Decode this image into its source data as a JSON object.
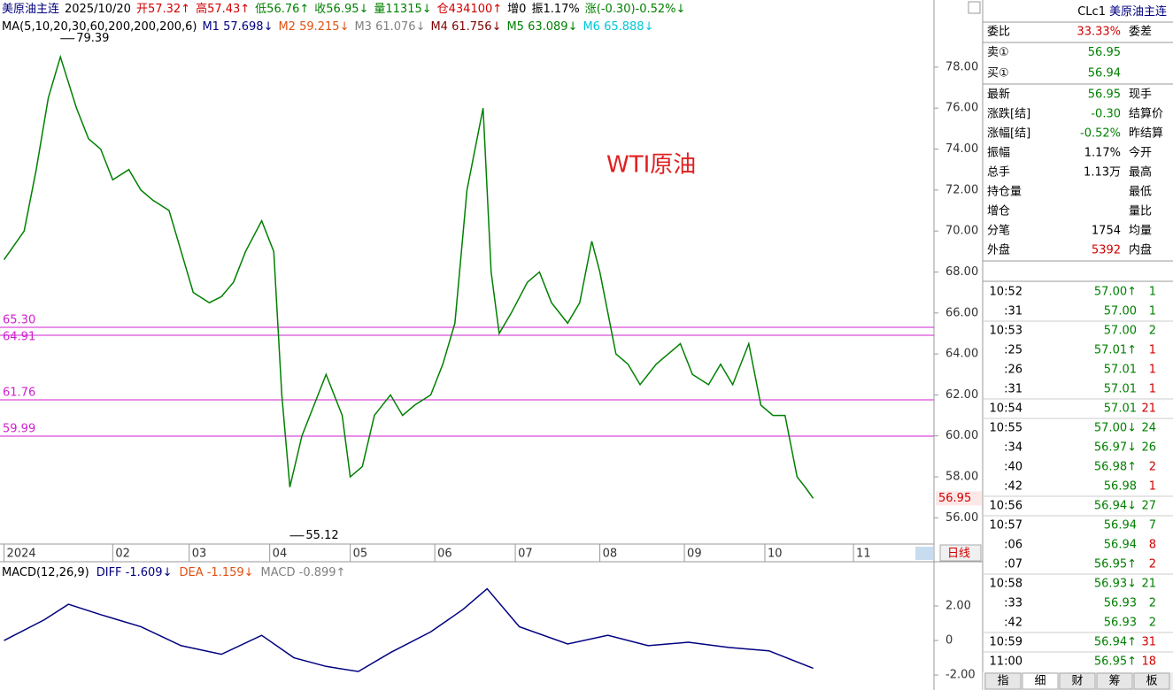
{
  "header": {
    "items": [
      {
        "text": "美原油主连",
        "color": "#000080"
      },
      {
        "text": "2025/10/20",
        "color": "#000000"
      },
      {
        "text": "开57.32↑",
        "color": "#d00000"
      },
      {
        "text": "高57.43↑",
        "color": "#d00000"
      },
      {
        "text": "低56.76↑",
        "color": "#008000"
      },
      {
        "text": "收56.95↓",
        "color": "#008000"
      },
      {
        "text": "量11315↓",
        "color": "#008000"
      },
      {
        "text": "仓434100↑",
        "color": "#d00000"
      },
      {
        "text": "增0",
        "color": "#000000"
      },
      {
        "text": "振1.17%",
        "color": "#000000"
      },
      {
        "text": "涨(-0.30)-0.52%↓",
        "color": "#008000"
      }
    ],
    "ma": [
      {
        "text": "MA(5,10,20,30,60,200,200,200,6)",
        "color": "#000000"
      },
      {
        "text": "M1 57.698↓",
        "color": "#000080"
      },
      {
        "text": "M2 59.215↓",
        "color": "#e05010"
      },
      {
        "text": "M3 61.076↓",
        "color": "#808080"
      },
      {
        "text": "M4 61.756↓",
        "color": "#800000"
      },
      {
        "text": "M5 63.089↓",
        "color": "#008000"
      },
      {
        "text": "M6 65.888↓",
        "color": "#00c8d8"
      }
    ]
  },
  "chart_data": [
    {
      "type": "line",
      "annotation": "WTI原油",
      "ylim": [
        54.85,
        79.55
      ],
      "xlim": [
        -1,
        231
      ],
      "yticks": [
        {
          "value": 56,
          "label": "56.00"
        },
        {
          "value": 58,
          "label": "58.00"
        },
        {
          "value": 60,
          "label": "60.00"
        },
        {
          "value": 62,
          "label": "62.00"
        },
        {
          "value": 64,
          "label": "64.00"
        },
        {
          "value": 66,
          "label": "66.00"
        },
        {
          "value": 68,
          "label": "68.00"
        },
        {
          "value": 70,
          "label": "70.00"
        },
        {
          "value": 72,
          "label": "72.00"
        },
        {
          "value": 74,
          "label": "74.00"
        },
        {
          "value": 76,
          "label": "76.00"
        },
        {
          "value": 78,
          "label": "78.00"
        }
      ],
      "xticks": [
        {
          "value": 0,
          "label": "2024"
        },
        {
          "value": 27,
          "label": "02"
        },
        {
          "value": 46,
          "label": "03"
        },
        {
          "value": 66,
          "label": "04"
        },
        {
          "value": 86,
          "label": "05"
        },
        {
          "value": 107,
          "label": "06"
        },
        {
          "value": 127,
          "label": "07"
        },
        {
          "value": 148,
          "label": "08"
        },
        {
          "value": 169,
          "label": "09"
        },
        {
          "value": 189,
          "label": "10"
        },
        {
          "value": 211,
          "label": "11"
        }
      ],
      "period_label": "日线",
      "levels": [
        {
          "value": 65.3,
          "label": "65.30"
        },
        {
          "value": 64.91,
          "label": "64.91"
        },
        {
          "value": 61.76,
          "label": "61.76"
        },
        {
          "value": 59.99,
          "label": "59.99"
        }
      ],
      "extremes": [
        {
          "x": 14,
          "value": 79.39,
          "label": "79.39"
        },
        {
          "x": 71,
          "value": 55.12,
          "label": "55.12"
        }
      ],
      "last_price": {
        "value": 56.95,
        "label": "56.95"
      },
      "series": [
        {
          "color": "#008000",
          "x": [
            0,
            5,
            8,
            11,
            14,
            18,
            21,
            24,
            27,
            31,
            34,
            37,
            41,
            44,
            47,
            51,
            54,
            57,
            60,
            64,
            67,
            69,
            71,
            74,
            77,
            80,
            84,
            86,
            89,
            92,
            96,
            99,
            102,
            106,
            109,
            112,
            115,
            119,
            121,
            123,
            126,
            130,
            133,
            136,
            140,
            143,
            146,
            148,
            152,
            155,
            158,
            162,
            165,
            168,
            171,
            175,
            178,
            181,
            185,
            188,
            191,
            194,
            197,
            199,
            201
          ],
          "values": [
            68.6,
            70,
            73,
            76.5,
            78.5,
            76,
            74.5,
            74,
            72.5,
            73,
            72,
            71.5,
            71,
            69,
            67,
            66.5,
            66.8,
            67.5,
            69,
            70.5,
            69,
            62,
            57.5,
            60,
            61.5,
            63,
            61,
            58,
            58.5,
            61,
            62,
            61,
            61.5,
            62,
            63.5,
            65.5,
            72,
            76,
            68,
            65,
            66,
            67.5,
            68,
            66.5,
            65.5,
            66.5,
            69.5,
            68,
            64,
            63.5,
            62.5,
            63.5,
            64,
            64.5,
            63,
            62.5,
            63.5,
            62.5,
            64.5,
            61.5,
            61,
            61,
            58,
            57.5,
            56.95
          ]
        }
      ]
    },
    {
      "type": "line",
      "title": "MACD(12,26,9)",
      "ylim": [
        -2.87,
        4.31
      ],
      "xlim": [
        -1,
        231
      ],
      "yticks": [
        {
          "value": 2,
          "label": "2.00"
        },
        0,
        {
          "value": -2,
          "label": "-2.00"
        }
      ],
      "series": [
        {
          "name": "DIFF -1.609↓",
          "color": "#000080",
          "x": [
            0,
            10,
            16,
            24,
            34,
            44,
            54,
            64,
            72,
            80,
            88,
            96,
            106,
            114,
            120,
            128,
            140,
            150,
            160,
            170,
            180,
            190,
            201
          ],
          "values": [
            0,
            1.2,
            2.1,
            1.5,
            0.8,
            -0.3,
            -0.8,
            0.3,
            -1,
            -1.5,
            -1.8,
            -0.7,
            0.5,
            1.8,
            3,
            0.8,
            -0.2,
            0.3,
            -0.3,
            -0.1,
            -0.4,
            -0.6,
            -1.609
          ]
        }
      ],
      "legend_extra": [
        {
          "text": "DEA -1.159↓",
          "color": "#e05010"
        },
        {
          "text": "MACD -0.899↑",
          "color": "#808080"
        }
      ]
    }
  ],
  "panel": {
    "code": "CLc1",
    "name": "美原油主连",
    "top": [
      {
        "label": "委比",
        "value": "33.33%",
        "color": "#d00000",
        "right": "委差"
      },
      {
        "label": "卖①",
        "value": "56.95",
        "color": "#008000"
      },
      {
        "label": "买①",
        "value": "56.94",
        "color": "#008000"
      }
    ],
    "quote": [
      {
        "label": "最新",
        "value": "56.95",
        "color": "#008000",
        "right": "现手"
      },
      {
        "label": "涨跌[结]",
        "value": "-0.30",
        "color": "#008000",
        "right": "结算价"
      },
      {
        "label": "涨幅[结]",
        "value": "-0.52%",
        "color": "#008000",
        "right": "昨结算"
      },
      {
        "label": "振幅",
        "value": "1.17%",
        "color": "#000000",
        "right": "今开"
      },
      {
        "label": "总手",
        "value": "1.13万",
        "color": "#000000",
        "right": "最高"
      },
      {
        "label": "持仓量",
        "right": "最低"
      },
      {
        "label": "增仓",
        "right": "量比"
      },
      {
        "label": "分笔",
        "value": "1754",
        "color": "#000000",
        "right": "均量"
      },
      {
        "label": "外盘",
        "value": "5392",
        "color": "#d00000",
        "right": "内盘"
      }
    ],
    "ticks": [
      {
        "time": "10:52",
        "price": "57.00↑",
        "volume": "1",
        "color": "#008000"
      },
      {
        "time": ":31",
        "price": "57.00",
        "volume": "1",
        "color": "#008000"
      },
      {
        "time": "10:53",
        "price": "57.00",
        "volume": "2",
        "color": "#008000"
      },
      {
        "time": ":25",
        "price": "57.01↑",
        "volume": "1",
        "color": "#d00000"
      },
      {
        "time": ":26",
        "price": "57.01",
        "volume": "1",
        "color": "#d00000"
      },
      {
        "time": ":31",
        "price": "57.01",
        "volume": "1",
        "color": "#d00000"
      },
      {
        "time": "10:54",
        "price": "57.01",
        "volume": "21",
        "color": "#d00000"
      },
      {
        "time": "10:55",
        "price": "57.00↓",
        "volume": "24",
        "color": "#008000"
      },
      {
        "time": ":34",
        "price": "56.97↓",
        "volume": "26",
        "color": "#008000"
      },
      {
        "time": ":40",
        "price": "56.98↑",
        "volume": "2",
        "color": "#d00000"
      },
      {
        "time": ":42",
        "price": "56.98",
        "volume": "1",
        "color": "#d00000"
      },
      {
        "time": "10:56",
        "price": "56.94↓",
        "volume": "27",
        "color": "#008000"
      },
      {
        "time": "10:57",
        "price": "56.94",
        "volume": "7",
        "color": "#008000"
      },
      {
        "time": ":06",
        "price": "56.94",
        "volume": "8",
        "color": "#d00000"
      },
      {
        "time": ":07",
        "price": "56.95↑",
        "volume": "2",
        "color": "#d00000"
      },
      {
        "time": "10:58",
        "price": "56.93↓",
        "volume": "21",
        "color": "#008000"
      },
      {
        "time": ":33",
        "price": "56.93",
        "volume": "2",
        "color": "#008000"
      },
      {
        "time": ":42",
        "price": "56.93",
        "volume": "2",
        "color": "#008000"
      },
      {
        "time": "10:59",
        "price": "56.94↑",
        "volume": "31",
        "color": "#d00000"
      },
      {
        "time": "11:00",
        "price": "56.95↑",
        "volume": "18",
        "color": "#d00000"
      }
    ],
    "tabs": [
      "指",
      "细",
      "财",
      "筹",
      "板"
    ]
  }
}
